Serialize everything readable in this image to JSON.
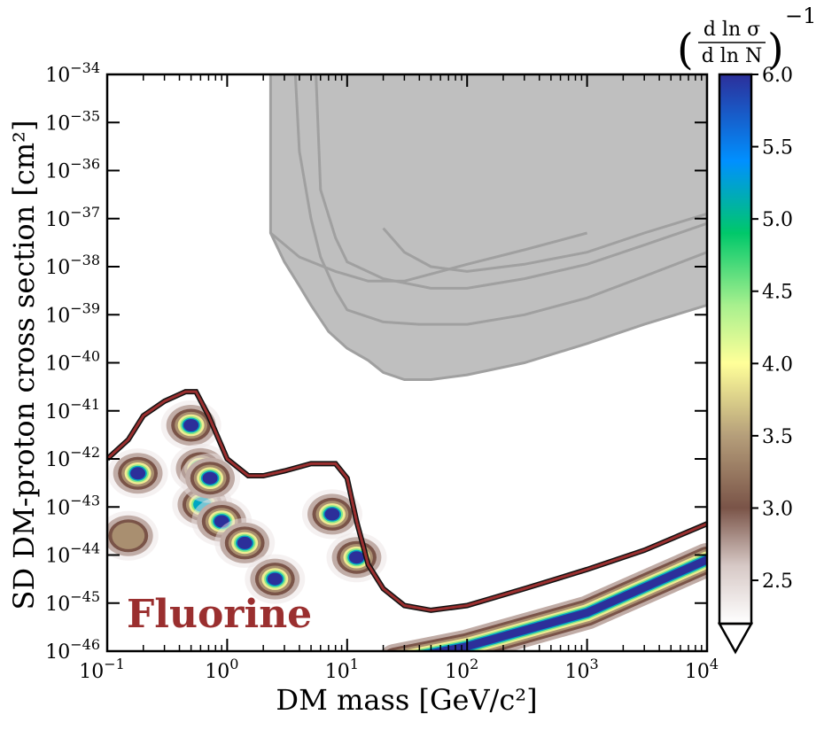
{
  "colors": {
    "excluded_fill": "#bfbfbf",
    "excluded_line": "#a0a0a0",
    "floor_line_outer": "#111111",
    "floor_line_inner": "#9a2f2f",
    "cmap_high": "#2c2f9a",
    "cmap_mid": "#ffff99",
    "cmap_low": "#6e4a43"
  },
  "chart_data": {
    "type": "heatmap",
    "xlabel": "DM mass [GeV/c²]",
    "ylabel": "SD DM-proton cross section [cm²]",
    "annotation": "Fluorine",
    "x_scale": "log",
    "y_scale": "log",
    "xlim": [
      0.1,
      10000
    ],
    "ylim": [
      1e-46,
      1e-34
    ],
    "x_ticks": [
      {
        "value": 0.1,
        "mant": "10",
        "exp": "−1"
      },
      {
        "value": 1,
        "mant": "10",
        "exp": "0"
      },
      {
        "value": 10,
        "mant": "10",
        "exp": "1"
      },
      {
        "value": 100,
        "mant": "10",
        "exp": "2"
      },
      {
        "value": 1000,
        "mant": "10",
        "exp": "3"
      },
      {
        "value": 10000,
        "mant": "10",
        "exp": "4"
      }
    ],
    "y_ticks": [
      {
        "value": -46,
        "mant": "10",
        "exp": "−46"
      },
      {
        "value": -45,
        "mant": "10",
        "exp": "−45"
      },
      {
        "value": -44,
        "mant": "10",
        "exp": "−44"
      },
      {
        "value": -43,
        "mant": "10",
        "exp": "−43"
      },
      {
        "value": -42,
        "mant": "10",
        "exp": "−42"
      },
      {
        "value": -41,
        "mant": "10",
        "exp": "−41"
      },
      {
        "value": -40,
        "mant": "10",
        "exp": "−40"
      },
      {
        "value": -39,
        "mant": "10",
        "exp": "−39"
      },
      {
        "value": -38,
        "mant": "10",
        "exp": "−38"
      },
      {
        "value": -37,
        "mant": "10",
        "exp": "−37"
      },
      {
        "value": -36,
        "mant": "10",
        "exp": "−36"
      },
      {
        "value": -35,
        "mant": "10",
        "exp": "−35"
      },
      {
        "value": -34,
        "mant": "10",
        "exp": "−34"
      }
    ],
    "neutrino_floor": {
      "x": [
        0.1,
        0.15,
        0.2,
        0.3,
        0.45,
        0.55,
        0.7,
        1,
        1.5,
        2,
        3,
        5,
        8,
        10,
        12,
        15,
        20,
        30,
        50,
        100,
        300,
        1000,
        3000,
        10000
      ],
      "y": [
        -42,
        -41.6,
        -41.1,
        -40.8,
        -40.6,
        -40.6,
        -41.1,
        -42,
        -42.35,
        -42.35,
        -42.25,
        -42.1,
        -42.1,
        -42.4,
        -43.3,
        -44.2,
        -44.7,
        -45.05,
        -45.15,
        -45.05,
        -44.7,
        -44.3,
        -43.9,
        -43.35
      ]
    },
    "excluded_region_lower_edge": {
      "x": [
        2.3,
        3,
        4,
        5,
        7,
        10,
        15,
        20,
        30,
        50,
        100,
        300,
        1000,
        3000,
        10000
      ],
      "y": [
        -37.3,
        -37.9,
        -38.4,
        -38.8,
        -39.35,
        -39.7,
        -39.95,
        -40.2,
        -40.35,
        -40.35,
        -40.25,
        -40.0,
        -39.6,
        -39.2,
        -38.8
      ]
    },
    "exclusion_limits": [
      {
        "x": [
          3.7,
          4,
          5,
          6,
          8,
          10,
          20,
          40,
          100,
          300,
          1000,
          3000,
          10000
        ],
        "y": [
          -34,
          -35.6,
          -37.0,
          -37.8,
          -38.5,
          -38.9,
          -39.15,
          -39.2,
          -39.2,
          -39.0,
          -38.65,
          -38.2,
          -37.7
        ]
      },
      {
        "x": [
          5.5,
          6,
          8,
          10,
          20,
          50,
          100,
          300,
          1000,
          3000,
          10000
        ],
        "y": [
          -34,
          -36.4,
          -37.4,
          -37.9,
          -38.25,
          -38.45,
          -38.45,
          -38.25,
          -37.95,
          -37.55,
          -37.1
        ]
      },
      {
        "x": [
          2.3,
          4,
          8,
          15,
          30,
          60,
          100,
          300,
          1000
        ],
        "y": [
          -37.3,
          -37.8,
          -38.1,
          -38.3,
          -38.3,
          -38.1,
          -37.95,
          -37.65,
          -37.3
        ]
      },
      {
        "x": [
          20,
          30,
          50,
          100,
          300,
          1000,
          3000,
          10000
        ],
        "y": [
          -37.2,
          -37.7,
          -38.0,
          -38.1,
          -37.95,
          -37.7,
          -37.3,
          -36.9
        ]
      }
    ],
    "heatmap_blobs": [
      {
        "x": 0.18,
        "y": -42.3,
        "peak": 6.0
      },
      {
        "x": 0.15,
        "y": -43.6,
        "peak": 3.5
      },
      {
        "x": 0.5,
        "y": -41.3,
        "peak": 6.0
      },
      {
        "x": 0.6,
        "y": -42.2,
        "peak": 5.5
      },
      {
        "x": 0.62,
        "y": -42.95,
        "peak": 5.8
      },
      {
        "x": 0.72,
        "y": -42.4,
        "peak": 6.0
      },
      {
        "x": 0.9,
        "y": -43.3,
        "peak": 6.0
      },
      {
        "x": 1.4,
        "y": -43.75,
        "peak": 6.0
      },
      {
        "x": 2.5,
        "y": -44.5,
        "peak": 6.0
      },
      {
        "x": 7.5,
        "y": -43.15,
        "peak": 6.0
      },
      {
        "x": 12,
        "y": -44.05,
        "peak": 6.0
      }
    ],
    "heatmap_band": {
      "x": [
        25,
        100,
        1000,
        10000
      ],
      "y": [
        -46.2,
        -45.9,
        -45.2,
        -44.1
      ],
      "peak": 6.0
    },
    "colorbar": {
      "label": "(d ln σ / d ln N)⁻¹",
      "label_num": "d ln σ",
      "label_den": "d ln N",
      "label_exp": "−1",
      "min": 2.2,
      "max": 6.0,
      "extend": "min",
      "ticks": [
        "2.5",
        "3.0",
        "3.5",
        "4.0",
        "4.5",
        "5.0",
        "5.5",
        "6.0"
      ],
      "stops": [
        {
          "v": 2.2,
          "color": "#ffffff"
        },
        {
          "v": 2.6,
          "color": "#d7c9c6"
        },
        {
          "v": 3.0,
          "color": "#7a5448"
        },
        {
          "v": 3.5,
          "color": "#b59e7a"
        },
        {
          "v": 4.0,
          "color": "#ffff99"
        },
        {
          "v": 4.4,
          "color": "#a8f08e"
        },
        {
          "v": 4.9,
          "color": "#00c86a"
        },
        {
          "v": 5.4,
          "color": "#0090ff"
        },
        {
          "v": 6.0,
          "color": "#2c2f9a"
        }
      ]
    }
  }
}
